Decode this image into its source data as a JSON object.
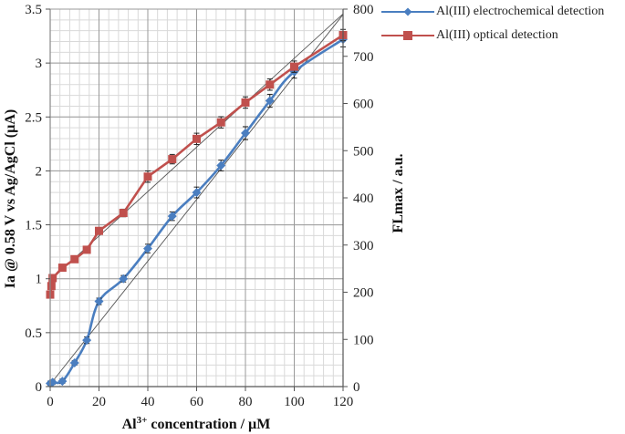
{
  "chart_data": {
    "type": "line",
    "title": "",
    "xlabel": "Al3+ concentration / µM",
    "xlabel_parts": {
      "base": "Al",
      "sup": "3+",
      "rest": " concentration  / µM"
    },
    "ylabel_left": "Ia @ 0.58 V  vs Ag/AgCl  (µA)",
    "ylabel_right": "FLmax / a.u.",
    "xlim": [
      0,
      120
    ],
    "ylim_left": [
      0,
      3.5
    ],
    "ylim_right": [
      0,
      800
    ],
    "x_ticks": [
      "0",
      "20",
      "40",
      "60",
      "80",
      "100",
      "120"
    ],
    "y_left_ticks": [
      "0",
      "0.5",
      "1",
      "1.5",
      "2",
      "2.5",
      "3",
      "3.5"
    ],
    "y_right_ticks": [
      "0",
      "100",
      "200",
      "300",
      "400",
      "500",
      "600",
      "700",
      "800"
    ],
    "grid": true,
    "legend_position": "top-right, outside plot",
    "series": [
      {
        "name": "Al(III) electrochemical detection",
        "axis": "left",
        "color": "#4A7EC0",
        "marker": "diamond",
        "x": [
          0,
          1,
          5,
          10,
          15,
          20,
          30,
          40,
          50,
          60,
          70,
          80,
          90,
          100,
          120
        ],
        "values": [
          0.03,
          0.04,
          0.05,
          0.22,
          0.43,
          0.79,
          1.0,
          1.28,
          1.58,
          1.8,
          2.05,
          2.35,
          2.65,
          2.92,
          3.22
        ],
        "error": [
          0.02,
          0.02,
          0.02,
          0.02,
          0.03,
          0.03,
          0.03,
          0.04,
          0.04,
          0.05,
          0.05,
          0.06,
          0.06,
          0.06,
          0.07
        ]
      },
      {
        "name": "Al(III) optical detection",
        "axis": "right",
        "color": "#C0504D",
        "marker": "square",
        "x": [
          0,
          0.5,
          1,
          5,
          10,
          15,
          20,
          30,
          40,
          50,
          60,
          70,
          80,
          90,
          100,
          120
        ],
        "values": [
          195,
          213,
          230,
          252,
          270,
          290,
          330,
          368,
          445,
          482,
          525,
          560,
          602,
          640,
          678,
          745
        ],
        "error": [
          5,
          5,
          5,
          5,
          5,
          6,
          6,
          8,
          12,
          10,
          12,
          12,
          12,
          12,
          12,
          12
        ]
      }
    ],
    "trendlines": [
      {
        "series": "Al(III) electrochemical detection",
        "color": "#555555",
        "from": [
          0,
          0.02
        ],
        "to": [
          120,
          3.45
        ]
      },
      {
        "series": "Al(III) optical detection",
        "color": "#555555",
        "from": [
          0,
          225
        ],
        "to": [
          120,
          790
        ]
      }
    ]
  },
  "legend": {
    "items": [
      {
        "label": "Al(III) electrochemical detection",
        "color": "#4A7EC0",
        "marker": "diamond"
      },
      {
        "label": "Al(III) optical detection",
        "color": "#C0504D",
        "marker": "square"
      }
    ]
  }
}
